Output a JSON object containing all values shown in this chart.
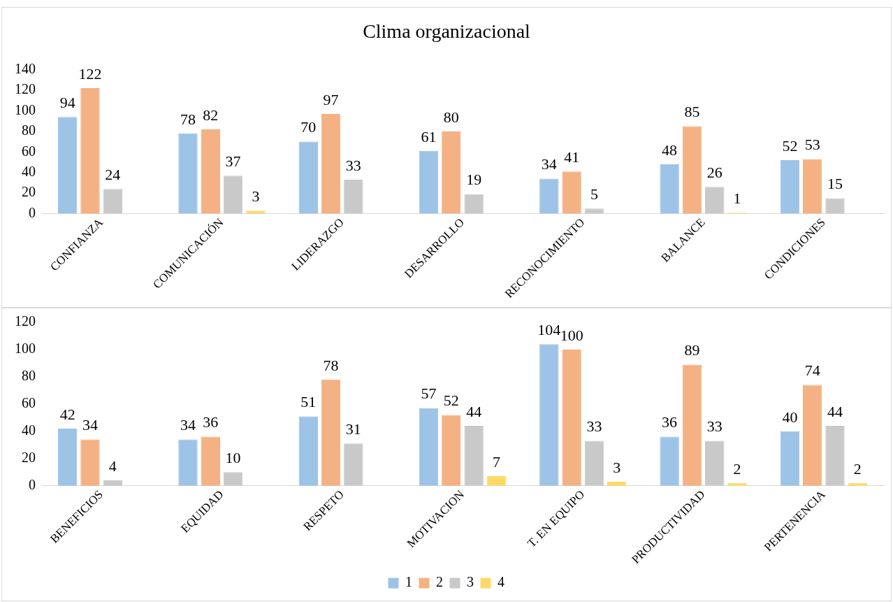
{
  "chart_data": [
    {
      "type": "bar",
      "title": "Clima organizacional",
      "categories": [
        "CONFIANZA",
        "COMUNICACIÓN",
        "LIDERAZGO",
        "DESARROLLO",
        "RECONOCIMIENTO",
        "BALANCE",
        "CONDICIONES"
      ],
      "series": [
        {
          "color": "#9dc3e6",
          "values": [
            94,
            78,
            70,
            61,
            34,
            48,
            52
          ]
        },
        {
          "color": "#f4b183",
          "values": [
            122,
            82,
            97,
            80,
            41,
            85,
            53
          ]
        },
        {
          "color": "#c9c9c9",
          "values": [
            24,
            37,
            33,
            19,
            5,
            26,
            15
          ]
        },
        {
          "color": "#ffd966",
          "values": [
            null,
            3,
            null,
            null,
            null,
            1,
            null
          ]
        }
      ],
      "ylim": [
        0,
        140
      ],
      "yticks": [
        0,
        20,
        40,
        60,
        80,
        100,
        120,
        140
      ],
      "grid": false,
      "legend": false,
      "data_labels": true
    },
    {
      "type": "bar",
      "categories": [
        "BENEFICIOS",
        "EQUIDAD",
        "RESPETO",
        "MOTIVACION",
        "T. EN EQUIPO",
        "PRODUCTIVIDAD",
        "PERTENENCIA"
      ],
      "series": [
        {
          "name": "1",
          "color": "#9dc3e6",
          "values": [
            42,
            34,
            51,
            57,
            104,
            36,
            40
          ]
        },
        {
          "name": "2",
          "color": "#f4b183",
          "values": [
            34,
            36,
            78,
            52,
            100,
            89,
            74
          ]
        },
        {
          "name": "3",
          "color": "#c9c9c9",
          "values": [
            4,
            10,
            31,
            44,
            33,
            33,
            44
          ]
        },
        {
          "name": "4",
          "color": "#ffd966",
          "values": [
            null,
            null,
            null,
            7,
            3,
            2,
            2
          ]
        }
      ],
      "ylim": [
        0,
        120
      ],
      "yticks": [
        0,
        20,
        40,
        60,
        80,
        100,
        120
      ],
      "grid": false,
      "legend": "bottom",
      "data_labels": true
    }
  ]
}
